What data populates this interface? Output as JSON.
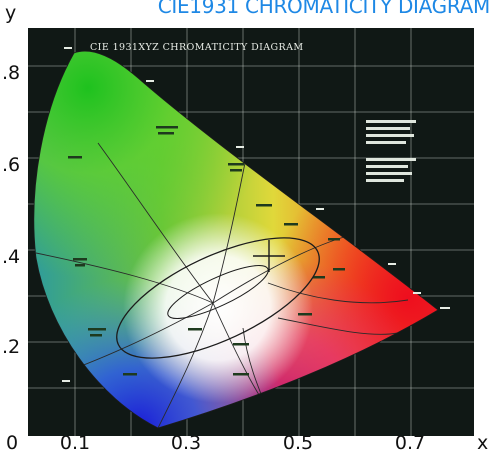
{
  "header": {
    "title": "CIE1931 CHROMATICITY DIAGRAM"
  },
  "plate": {
    "caption": "CIE 1931XYZ CHROMATICITY DIAGRAM",
    "colors": {
      "background": "#101815",
      "grid": "#ffffff",
      "accent": "#1e88e5"
    }
  },
  "axes": {
    "y_label": "y",
    "x_label": "x",
    "origin_label": "0",
    "x_ticks": [
      "0.1",
      "0.3",
      "0.5",
      "0.7"
    ],
    "y_ticks": [
      ".8",
      ".6",
      ".4",
      ".2"
    ]
  }
}
